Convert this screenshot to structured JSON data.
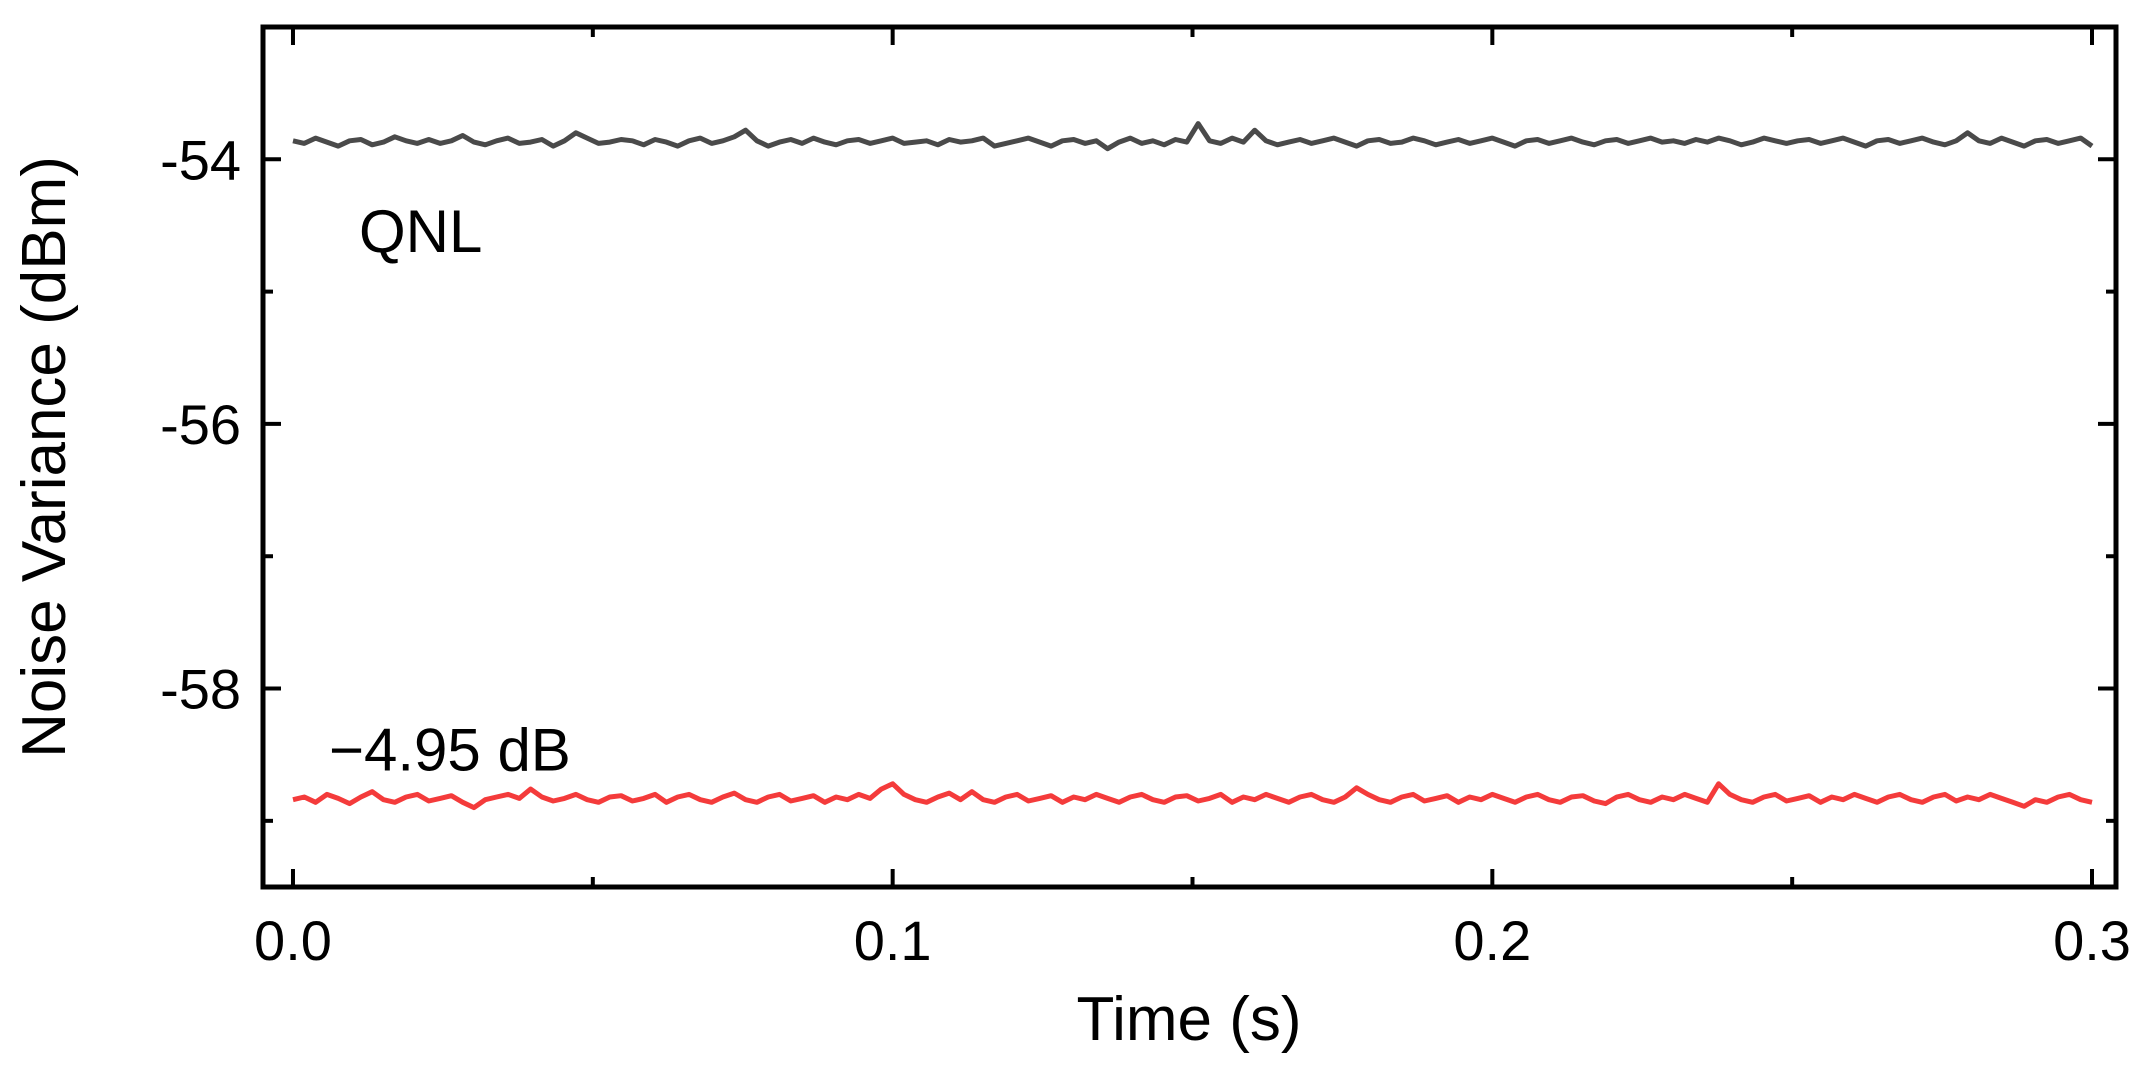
{
  "chart_data": {
    "type": "line",
    "xlabel": "Time (s)",
    "ylabel": "Noise Variance (dBm)",
    "xlim": [
      -0.005,
      0.304
    ],
    "ylim": [
      -59.5,
      -53.0
    ],
    "x_ticks": [
      0.0,
      0.1,
      0.2,
      0.3
    ],
    "x_tick_labels": [
      "0.0",
      "0.1",
      "0.2",
      "0.3"
    ],
    "x_minor_ticks": [
      0.05,
      0.15,
      0.25
    ],
    "y_ticks": [
      -54,
      -56,
      -58
    ],
    "y_tick_labels": [
      "-54",
      "-56",
      "-58"
    ],
    "y_minor_ticks": [
      -55,
      -57,
      -59
    ],
    "grid": false,
    "series": [
      {
        "name": "QNL",
        "color": "#4a4a4a",
        "x_start": 0.0,
        "x_end": 0.3,
        "mean": -53.87,
        "values": [
          -53.86,
          -53.88,
          -53.84,
          -53.87,
          -53.9,
          -53.86,
          -53.85,
          -53.89,
          -53.87,
          -53.83,
          -53.86,
          -53.88,
          -53.85,
          -53.88,
          -53.86,
          -53.82,
          -53.87,
          -53.89,
          -53.86,
          -53.84,
          -53.88,
          -53.87,
          -53.85,
          -53.9,
          -53.86,
          -53.8,
          -53.84,
          -53.88,
          -53.87,
          -53.85,
          -53.86,
          -53.89,
          -53.85,
          -53.87,
          -53.9,
          -53.86,
          -53.84,
          -53.88,
          -53.86,
          -53.83,
          -53.78,
          -53.86,
          -53.9,
          -53.87,
          -53.85,
          -53.88,
          -53.84,
          -53.87,
          -53.89,
          -53.86,
          -53.85,
          -53.88,
          -53.86,
          -53.84,
          -53.88,
          -53.87,
          -53.86,
          -53.89,
          -53.85,
          -53.87,
          -53.86,
          -53.84,
          -53.9,
          -53.88,
          -53.86,
          -53.84,
          -53.87,
          -53.9,
          -53.86,
          -53.85,
          -53.88,
          -53.86,
          -53.92,
          -53.87,
          -53.84,
          -53.88,
          -53.86,
          -53.89,
          -53.85,
          -53.87,
          -53.73,
          -53.86,
          -53.88,
          -53.84,
          -53.87,
          -53.78,
          -53.86,
          -53.89,
          -53.87,
          -53.85,
          -53.88,
          -53.86,
          -53.84,
          -53.87,
          -53.9,
          -53.86,
          -53.85,
          -53.88,
          -53.87,
          -53.84,
          -53.86,
          -53.89,
          -53.87,
          -53.85,
          -53.88,
          -53.86,
          -53.84,
          -53.87,
          -53.9,
          -53.86,
          -53.85,
          -53.88,
          -53.86,
          -53.84,
          -53.87,
          -53.89,
          -53.86,
          -53.85,
          -53.88,
          -53.86,
          -53.84,
          -53.87,
          -53.86,
          -53.88,
          -53.85,
          -53.87,
          -53.84,
          -53.86,
          -53.89,
          -53.87,
          -53.84,
          -53.86,
          -53.88,
          -53.86,
          -53.85,
          -53.88,
          -53.86,
          -53.84,
          -53.87,
          -53.9,
          -53.86,
          -53.85,
          -53.88,
          -53.86,
          -53.84,
          -53.87,
          -53.89,
          -53.86,
          -53.8,
          -53.86,
          -53.88,
          -53.84,
          -53.87,
          -53.9,
          -53.86,
          -53.85,
          -53.88,
          -53.86,
          -53.84,
          -53.9
        ]
      },
      {
        "name": "−4.95 dB",
        "color": "#f43b3b",
        "x_start": 0.0,
        "x_end": 0.3,
        "mean": -58.82,
        "values": [
          -58.84,
          -58.82,
          -58.86,
          -58.8,
          -58.83,
          -58.87,
          -58.82,
          -58.78,
          -58.84,
          -58.86,
          -58.82,
          -58.8,
          -58.85,
          -58.83,
          -58.81,
          -58.86,
          -58.9,
          -58.84,
          -58.82,
          -58.8,
          -58.83,
          -58.76,
          -58.82,
          -58.85,
          -58.83,
          -58.8,
          -58.84,
          -58.86,
          -58.82,
          -58.81,
          -58.85,
          -58.83,
          -58.8,
          -58.86,
          -58.82,
          -58.8,
          -58.84,
          -58.86,
          -58.82,
          -58.79,
          -58.84,
          -58.86,
          -58.82,
          -58.8,
          -58.85,
          -58.83,
          -58.81,
          -58.86,
          -58.82,
          -58.84,
          -58.8,
          -58.83,
          -58.76,
          -58.72,
          -58.8,
          -58.84,
          -58.86,
          -58.82,
          -58.79,
          -58.84,
          -58.78,
          -58.84,
          -58.86,
          -58.82,
          -58.8,
          -58.85,
          -58.83,
          -58.81,
          -58.86,
          -58.82,
          -58.84,
          -58.8,
          -58.83,
          -58.86,
          -58.82,
          -58.8,
          -58.84,
          -58.86,
          -58.82,
          -58.81,
          -58.85,
          -58.83,
          -58.8,
          -58.86,
          -58.82,
          -58.84,
          -58.8,
          -58.83,
          -58.86,
          -58.82,
          -58.8,
          -58.84,
          -58.86,
          -58.82,
          -58.75,
          -58.8,
          -58.84,
          -58.86,
          -58.82,
          -58.8,
          -58.85,
          -58.83,
          -58.81,
          -58.86,
          -58.82,
          -58.84,
          -58.8,
          -58.83,
          -58.86,
          -58.82,
          -58.8,
          -58.84,
          -58.86,
          -58.82,
          -58.81,
          -58.85,
          -58.87,
          -58.82,
          -58.8,
          -58.84,
          -58.86,
          -58.82,
          -58.84,
          -58.8,
          -58.83,
          -58.86,
          -58.72,
          -58.8,
          -58.84,
          -58.86,
          -58.82,
          -58.8,
          -58.85,
          -58.83,
          -58.81,
          -58.86,
          -58.82,
          -58.84,
          -58.8,
          -58.83,
          -58.86,
          -58.82,
          -58.8,
          -58.84,
          -58.86,
          -58.82,
          -58.8,
          -58.85,
          -58.82,
          -58.84,
          -58.8,
          -58.83,
          -58.86,
          -58.89,
          -58.84,
          -58.86,
          -58.82,
          -58.8,
          -58.84,
          -58.86
        ]
      }
    ],
    "annotations": [
      {
        "text": "QNL",
        "x": 0.011,
        "y": -54.55
      },
      {
        "text": "−4.95 dB",
        "x": 0.006,
        "y": -58.47
      }
    ]
  }
}
